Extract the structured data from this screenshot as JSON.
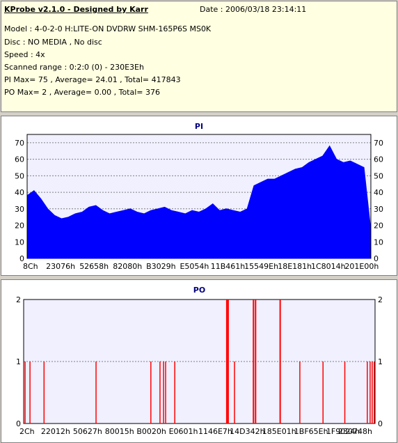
{
  "info": {
    "title": "KProbe v2.1.0 - Designed by Karr",
    "date": "Date : 2006/03/18 23:14:11",
    "lines": [
      "Model : 4-0-2-0 H:LITE-ON DVDRW SHM-165P6S MS0K",
      "Disc : NO MEDIA , No disc",
      "Speed : 4x",
      "Scanned range : 0:2:0 (0) - 230E3Eh",
      "PI Max= 75 , Average= 24.01 , Total= 417843",
      "PO Max= 2 , Average= 0.00 , Total= 376"
    ]
  },
  "colors": {
    "pi_series": "#0000ff",
    "po_series": "#ff0000",
    "plot_background": "#f0f0ff",
    "grid": "#7f7f7f",
    "title_text": "#000080"
  },
  "chart_data": [
    {
      "type": "area",
      "title": "PI",
      "xlabel": "",
      "ylabel": "",
      "ylim": [
        0,
        75
      ],
      "yticks": [
        0,
        10,
        20,
        30,
        40,
        50,
        60,
        70
      ],
      "right_axis": true,
      "grid": true,
      "xtick_labels": [
        "8Ch",
        "23076h",
        "52658h",
        "82080h",
        "B3029h",
        "E5054h",
        "11B461h",
        "15549Eh",
        "18E181h",
        "1C8014h",
        "201E00h"
      ],
      "series": [
        {
          "x": [
            0.0,
            0.02,
            0.04,
            0.06,
            0.08,
            0.1,
            0.12,
            0.14,
            0.16,
            0.18,
            0.2,
            0.22,
            0.24,
            0.26,
            0.28,
            0.3,
            0.32,
            0.34,
            0.36,
            0.38,
            0.4,
            0.42,
            0.44,
            0.46,
            0.48,
            0.5,
            0.52,
            0.54,
            0.56,
            0.58,
            0.6,
            0.62,
            0.64,
            0.66,
            0.68,
            0.7,
            0.72,
            0.74,
            0.76,
            0.78,
            0.8,
            0.82,
            0.84,
            0.86,
            0.88,
            0.9,
            0.92,
            0.94,
            0.96,
            0.98,
            1.0
          ],
          "values": [
            38,
            41,
            36,
            30,
            26,
            24,
            25,
            27,
            28,
            31,
            32,
            29,
            27,
            28,
            29,
            30,
            28,
            27,
            29,
            30,
            31,
            29,
            28,
            27,
            29,
            28,
            30,
            33,
            29,
            30,
            29,
            28,
            30,
            44,
            46,
            48,
            48,
            50,
            52,
            54,
            55,
            58,
            60,
            62,
            68,
            60,
            58,
            59,
            57,
            55,
            17
          ]
        }
      ]
    },
    {
      "type": "bar",
      "title": "PO",
      "xlabel": "",
      "ylabel": "",
      "ylim": [
        0,
        2
      ],
      "yticks": [
        0,
        1,
        2
      ],
      "right_axis": true,
      "grid": true,
      "xtick_labels": [
        "2Ch",
        "22012h",
        "50627h",
        "80015h",
        "B0020h",
        "E0601h",
        "1146E7h",
        "14D342h",
        "185E01h",
        "1BF65Eh",
        "1F9024h",
        "230748h"
      ],
      "series": [
        {
          "x": [
            0.004,
            0.018,
            0.058,
            0.206,
            0.362,
            0.388,
            0.398,
            0.404,
            0.43,
            0.578,
            0.582,
            0.6,
            0.654,
            0.66,
            0.73,
            0.786,
            0.852,
            0.914,
            0.978,
            0.986,
            0.992,
            0.998
          ],
          "values": [
            1,
            1,
            1,
            1,
            1,
            1,
            1,
            1,
            1,
            2,
            2,
            1,
            2,
            2,
            2,
            1,
            1,
            1,
            1,
            1,
            1,
            1
          ]
        }
      ]
    }
  ]
}
